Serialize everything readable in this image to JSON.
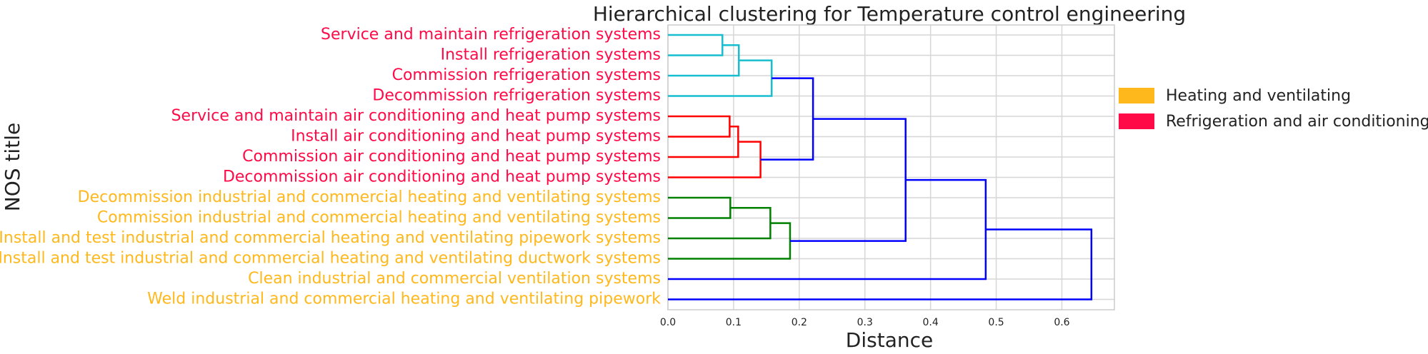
{
  "chart_data": {
    "type": "dendrogram",
    "title": "Hierarchical clustering for Temperature control engineering",
    "xlabel": "Distance",
    "ylabel": "NOS title",
    "xlim": [
      0.0,
      0.68
    ],
    "xticks": [
      "0.0",
      "0.1",
      "0.2",
      "0.3",
      "0.4",
      "0.5",
      "0.6"
    ],
    "grid": true,
    "legend_position": "right",
    "legend": [
      {
        "label": "Heating and ventilating",
        "color": "#ffb81c"
      },
      {
        "label": "Refrigeration and air conditioning",
        "color": "#ff0a47"
      }
    ],
    "leaves": [
      {
        "label": "Service and maintain refrigeration systems",
        "group": "Refrigeration and air conditioning"
      },
      {
        "label": "Install refrigeration systems",
        "group": "Refrigeration and air conditioning"
      },
      {
        "label": "Commission refrigeration systems",
        "group": "Refrigeration and air conditioning"
      },
      {
        "label": "Decommission refrigeration systems",
        "group": "Refrigeration and air conditioning"
      },
      {
        "label": "Service and maintain air conditioning and heat pump systems",
        "group": "Refrigeration and air conditioning"
      },
      {
        "label": "Install air conditioning and heat pump systems",
        "group": "Refrigeration and air conditioning"
      },
      {
        "label": "Commission air conditioning and heat pump systems",
        "group": "Refrigeration and air conditioning"
      },
      {
        "label": "Decommission air conditioning and heat pump systems",
        "group": "Refrigeration and air conditioning"
      },
      {
        "label": "Decommission industrial and commercial heating and ventilating systems",
        "group": "Heating and ventilating"
      },
      {
        "label": "Commission industrial and commercial heating and ventilating systems",
        "group": "Heating and ventilating"
      },
      {
        "label": "Install and test industrial and commercial heating and ventilating pipework systems",
        "group": "Heating and ventilating"
      },
      {
        "label": "Install and test industrial and commercial heating and ventilating ductwork systems",
        "group": "Heating and ventilating"
      },
      {
        "label": "Clean industrial and commercial ventilation systems",
        "group": "Heating and ventilating"
      },
      {
        "label": "Weld industrial and commercial heating and ventilating pipework",
        "group": "Heating and ventilating"
      }
    ],
    "merges": [
      {
        "left": "L0",
        "right": "L1",
        "distance": 0.083,
        "color": "#17becf"
      },
      {
        "left": "M0",
        "right": "L2",
        "distance": 0.108,
        "color": "#17becf"
      },
      {
        "left": "M1",
        "right": "L3",
        "distance": 0.158,
        "color": "#17becf"
      },
      {
        "left": "L4",
        "right": "L5",
        "distance": 0.094,
        "color": "#ff0000"
      },
      {
        "left": "M3",
        "right": "L6",
        "distance": 0.107,
        "color": "#ff0000"
      },
      {
        "left": "M4",
        "right": "L7",
        "distance": 0.141,
        "color": "#ff0000"
      },
      {
        "left": "M2",
        "right": "M5",
        "distance": 0.221,
        "color": "#0000ff"
      },
      {
        "left": "L8",
        "right": "L9",
        "distance": 0.095,
        "color": "#008000"
      },
      {
        "left": "M7",
        "right": "L10",
        "distance": 0.156,
        "color": "#008000"
      },
      {
        "left": "M8",
        "right": "L11",
        "distance": 0.186,
        "color": "#008000"
      },
      {
        "left": "M6",
        "right": "M9",
        "distance": 0.362,
        "color": "#0000ff"
      },
      {
        "left": "M10",
        "right": "L12",
        "distance": 0.484,
        "color": "#0000ff"
      },
      {
        "left": "M11",
        "right": "L13",
        "distance": 0.645,
        "color": "#0000ff"
      }
    ]
  }
}
